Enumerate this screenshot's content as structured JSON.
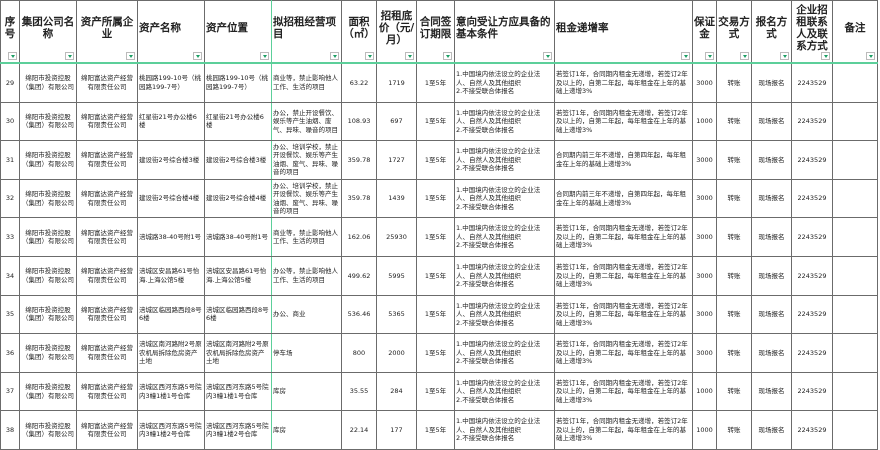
{
  "headers": [
    "序号",
    "集团公司名称",
    "资产所属企业",
    "资产名称",
    "资产位置",
    "拟招租经营项目",
    "面积（㎡）",
    "招租底价（元/月）",
    "合同签订期限",
    "意向受让方应具备的基本条件",
    "租金递增率",
    "保证金",
    "交易方式",
    "报名方式",
    "企业招租联系人及联系方式",
    "备注"
  ],
  "colors": {
    "grid": "#6b6b6b",
    "freeze_line": "#5ccf9a",
    "filter_arrow": "#1a9e63"
  },
  "rows": [
    {
      "no": "29",
      "group": "绵阳市投资控股（集团）有限公司",
      "owner": "绵阳富达资产经营有限责任公司",
      "name": "桃园路199-10号（桃园路199-7号）",
      "location": "桃园路199-10号（桃园路199-7号）",
      "project": "商业等，禁止影响他人工作、生活的项目",
      "area": "63.22",
      "price": "1719",
      "term": "1至5年",
      "conditions": "1.中国境内依法设立的企业法人、自然人及其他组织\n2.不接受联合体报名",
      "rate": "若签订1年，合同期内租金无递增，若签订2年及以上的，自第二年起，每年租金在上年的基础上递增3%",
      "deposit": "3000",
      "trade": "转账",
      "signup": "现场报名",
      "contact": "2243529",
      "remark": ""
    },
    {
      "no": "30",
      "group": "绵阳市投资控股（集团）有限公司",
      "owner": "绵阳富达资产经营有限责任公司",
      "name": "红星街21号办公楼6楼",
      "location": "红星街21号办公楼6楼",
      "project": "办公，禁止开设餐饮、娱乐等产生油烟、废气、异味、噪音的项目",
      "area": "108.93",
      "price": "697",
      "term": "1至5年",
      "conditions": "1.中国境内依法设立的企业法人、自然人及其他组织\n2.不接受联合体报名",
      "rate": "若签订1年，合同期内租金无递增，若签订2年及以上的，自第二年起，每年租金在上年的基础上递增3%",
      "deposit": "1000",
      "trade": "转账",
      "signup": "现场报名",
      "contact": "2243529",
      "remark": ""
    },
    {
      "no": "31",
      "group": "绵阳市投资控股（集团）有限公司",
      "owner": "绵阳富达资产经营有限责任公司",
      "name": "建设街2号综合楼3楼",
      "location": "建设街2号综合楼3楼",
      "project": "办公、培训学校，禁止开设餐饮、娱乐等产生油烟、废气、异味、噪音的项目",
      "area": "359.78",
      "price": "1727",
      "term": "1至5年",
      "conditions": "1.中国境内依法设立的企业法人、自然人及其他组织\n2.不接受联合体报名",
      "rate": "合同期内前三年不递增，自第四年起，每年租金在上年的基础上递增3%",
      "deposit": "3000",
      "trade": "转账",
      "signup": "现场报名",
      "contact": "2243529",
      "remark": ""
    },
    {
      "no": "32",
      "group": "绵阳市投资控股（集团）有限公司",
      "owner": "绵阳富达资产经营有限责任公司",
      "name": "建设街2号综合楼4楼",
      "location": "建设街2号综合楼4楼",
      "project": "办公、培训学校，禁止开设餐饮、娱乐等产生油烟、废气、异味、噪音的项目",
      "area": "359.78",
      "price": "1439",
      "term": "1至5年",
      "conditions": "1.中国境内依法设立的企业法人、自然人及其他组织\n2.不接受联合体报名",
      "rate": "合同期内前三年不递增，自第四年起，每年租金在上年的基础上递增3%",
      "deposit": "3000",
      "trade": "转账",
      "signup": "现场报名",
      "contact": "2243529",
      "remark": ""
    },
    {
      "no": "33",
      "group": "绵阳市投资控股（集团）有限公司",
      "owner": "绵阳富达资产经营有限责任公司",
      "name": "涪城路38-40号附1号",
      "location": "涪城路38-40号附1号",
      "project": "商业等，禁止影响他人工作、生活的项目",
      "area": "162.06",
      "price": "25930",
      "term": "1至5年",
      "conditions": "1.中国境内依法设立的企业法人、自然人及其他组织\n2.不接受联合体报名",
      "rate": "若签订1年，合同期内租金无递增，若签订2年及以上的，自第二年起，每年租金在上年的基础上递增3%",
      "deposit": "3000",
      "trade": "转账",
      "signup": "现场报名",
      "contact": "2243529",
      "remark": ""
    },
    {
      "no": "34",
      "group": "绵阳市投资控股（集团）有限公司",
      "owner": "绵阳富达资产经营有限责任公司",
      "name": "涪城区安昌路61号怡海.上海公馆5楼",
      "location": "涪城区安昌路61号怡海.上海公馆5楼",
      "project": "办公等，禁止影响他人工作、生活的项目",
      "area": "499.62",
      "price": "5995",
      "term": "1至5年",
      "conditions": "1.中国境内依法设立的企业法人、自然人及其他组织\n2.不接受联合体报名",
      "rate": "若签订1年，合同期内租金无递增，若签订2年及以上的，自第二年起，每年租金在上年的基础上递增3%",
      "deposit": "3000",
      "trade": "转账",
      "signup": "现场报名",
      "contact": "2243529",
      "remark": ""
    },
    {
      "no": "35",
      "group": "绵阳市投资控股（集团）有限公司",
      "owner": "绵阳富达资产经营有限责任公司",
      "name": "涪城区临园路西段8号6楼",
      "location": "涪城区临园路西段8号6楼",
      "project": "办公、商业",
      "area": "536.46",
      "price": "5365",
      "term": "1至5年",
      "conditions": "1.中国境内依法设立的企业法人、自然人及其他组织\n2.不接受联合体报名",
      "rate": "若签订1年，合同期内租金无递增，若签订2年及以上的，自第二年起，每年租金在上年的基础上递增3%",
      "deposit": "3000",
      "trade": "转账",
      "signup": "现场报名",
      "contact": "2243529",
      "remark": ""
    },
    {
      "no": "36",
      "group": "绵阳市投资控股（集团）有限公司",
      "owner": "绵阳富达资产经营有限责任公司",
      "name": "涪城区南河路附2号原农机局拆除危房资产土地",
      "location": "涪城区南河路附2号原农机局拆除危房资产土地",
      "project": "停车场",
      "area": "800",
      "price": "2000",
      "term": "1至5年",
      "conditions": "1.中国境内依法设立的企业法人、自然人及其他组织\n2.不接受联合体报名",
      "rate": "若签订1年，合同期内租金无递增，若签订2年及以上的，自第二年起，每年租金在上年的基础上递增3%",
      "deposit": "3000",
      "trade": "转账",
      "signup": "现场报名",
      "contact": "2243529",
      "remark": ""
    },
    {
      "no": "37",
      "group": "绵阳市投资控股（集团）有限公司",
      "owner": "绵阳富达资产经营有限责任公司",
      "name": "涪城区西河东路5号院内3幢1楼1号仓库",
      "location": "涪城区西河东路5号院内3幢1楼1号仓库",
      "project": "库房",
      "area": "35.55",
      "price": "284",
      "term": "1至5年",
      "conditions": "1.中国境内依法设立的企业法人、自然人及其他组织\n2.不接受联合体报名",
      "rate": "若签订1年，合同期内租金无递增，若签订2年及以上的，自第二年起，每年租金在上年的基础上递增3%",
      "deposit": "1000",
      "trade": "转账",
      "signup": "现场报名",
      "contact": "2243529",
      "remark": ""
    },
    {
      "no": "38",
      "group": "绵阳市投资控股（集团）有限公司",
      "owner": "绵阳富达资产经营有限责任公司",
      "name": "涪城区西河东路5号院内3幢1楼2号仓库",
      "location": "涪城区西河东路5号院内3幢1楼2号仓库",
      "project": "库房",
      "area": "22.14",
      "price": "177",
      "term": "1至5年",
      "conditions": "1.中国境内依法设立的企业法人、自然人及其他组织\n2.不接受联合体报名",
      "rate": "若签订1年，合同期内租金无递增，若签订2年及以上的，自第二年起，每年租金在上年的基础上递增3%",
      "deposit": "1000",
      "trade": "转账",
      "signup": "现场报名",
      "contact": "2243529",
      "remark": ""
    }
  ]
}
